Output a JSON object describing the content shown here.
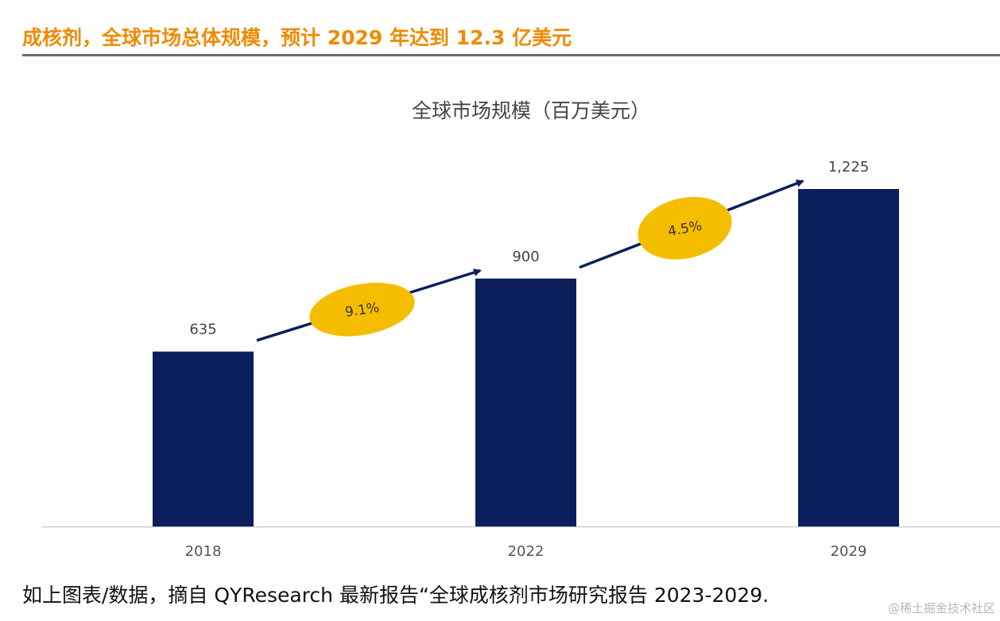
{
  "header": {
    "headline": "成核剂，全球市场总体规模，预计 2029 年达到 12.3 亿美元"
  },
  "chart_data": {
    "type": "bar",
    "title": "全球市场规模（百万美元）",
    "categories": [
      "2018",
      "2022",
      "2029"
    ],
    "values": [
      635,
      900,
      1225
    ],
    "value_labels": [
      "635",
      "900",
      "1,225"
    ],
    "xlabel": "",
    "ylabel": "",
    "ylim": [
      0,
      1225
    ],
    "grid": false,
    "legend": "none",
    "bar_color": "#0b1f5c",
    "annotations": [
      {
        "from": "2018",
        "to": "2022",
        "label": "9.1%",
        "meaning": "CAGR",
        "color": "#f5bd00"
      },
      {
        "from": "2022",
        "to": "2029",
        "label": "4.5%",
        "meaning": "CAGR",
        "color": "#f5bd00"
      }
    ]
  },
  "footer": {
    "source_note": "如上图表/数据，摘自 QYResearch 最新报告“全球成核剂市场研究报告 2023-2029.",
    "watermark": "@稀土掘金技术社区"
  }
}
